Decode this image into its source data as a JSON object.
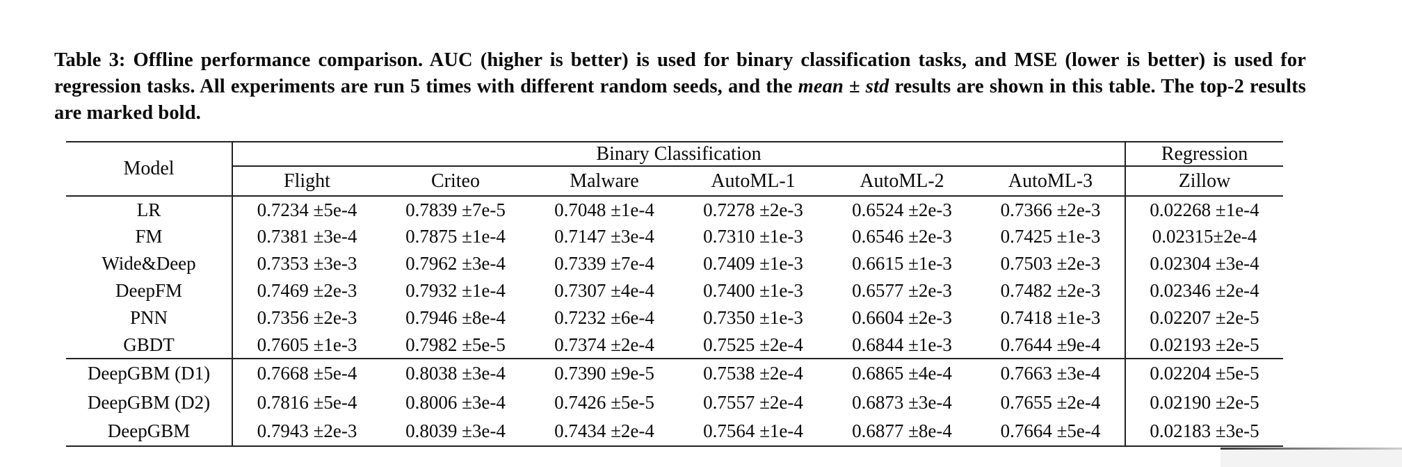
{
  "page": {
    "background": "#ffffff",
    "text_color": "#0a0a0a",
    "rule_color": "#222222"
  },
  "caption": {
    "text_before_italic": "Table 3: Offline performance comparison. AUC (higher is better) is used for binary classification tasks, and MSE (lower is better) is used for regression tasks. All experiments are run 5 times with different random seeds, and the ",
    "italic_text": "mean ± std",
    "text_after_italic": " results are shown in this table. The top-2 results are marked bold."
  },
  "table": {
    "corner_header": "Model",
    "group_headers": [
      {
        "label": "Binary Classification",
        "colspan": 6
      },
      {
        "label": "Regression",
        "colspan": 1
      }
    ],
    "column_headers": [
      "Flight",
      "Criteo",
      "Malware",
      "AutoML-1",
      "AutoML-2",
      "AutoML-3",
      "Zillow"
    ],
    "rows": [
      {
        "model": "LR",
        "section": "baseline",
        "cells": [
          {
            "text": "0.7234 ±5e-4",
            "bold": false
          },
          {
            "text": "0.7839 ±7e-5",
            "bold": false
          },
          {
            "text": "0.7048 ±1e-4",
            "bold": false
          },
          {
            "text": "0.7278 ±2e-3",
            "bold": false
          },
          {
            "text": "0.6524 ±2e-3",
            "bold": false
          },
          {
            "text": "0.7366 ±2e-3",
            "bold": false
          },
          {
            "text": "0.02268 ±1e-4",
            "bold": false
          }
        ]
      },
      {
        "model": "FM",
        "section": "baseline",
        "cells": [
          {
            "text": "0.7381 ±3e-4",
            "bold": false
          },
          {
            "text": "0.7875 ±1e-4",
            "bold": false
          },
          {
            "text": "0.7147 ±3e-4",
            "bold": false
          },
          {
            "text": "0.7310 ±1e-3",
            "bold": false
          },
          {
            "text": "0.6546 ±2e-3",
            "bold": false
          },
          {
            "text": "0.7425 ±1e-3",
            "bold": false
          },
          {
            "text": "0.02315±2e-4",
            "bold": false
          }
        ]
      },
      {
        "model": "Wide&Deep",
        "section": "baseline",
        "cells": [
          {
            "text": "0.7353 ±3e-3",
            "bold": false
          },
          {
            "text": "0.7962 ±3e-4",
            "bold": false
          },
          {
            "text": "0.7339 ±7e-4",
            "bold": false
          },
          {
            "text": "0.7409 ±1e-3",
            "bold": false
          },
          {
            "text": "0.6615 ±1e-3",
            "bold": false
          },
          {
            "text": "0.7503 ±2e-3",
            "bold": false
          },
          {
            "text": "0.02304 ±3e-4",
            "bold": false
          }
        ]
      },
      {
        "model": "DeepFM",
        "section": "baseline",
        "cells": [
          {
            "text": "0.7469 ±2e-3",
            "bold": false
          },
          {
            "text": "0.7932 ±1e-4",
            "bold": false
          },
          {
            "text": "0.7307 ±4e-4",
            "bold": false
          },
          {
            "text": "0.7400 ±1e-3",
            "bold": false
          },
          {
            "text": "0.6577 ±2e-3",
            "bold": false
          },
          {
            "text": "0.7482 ±2e-3",
            "bold": false
          },
          {
            "text": "0.02346 ±2e-4",
            "bold": false
          }
        ]
      },
      {
        "model": "PNN",
        "section": "baseline",
        "cells": [
          {
            "text": "0.7356 ±2e-3",
            "bold": false
          },
          {
            "text": "0.7946 ±8e-4",
            "bold": false
          },
          {
            "text": "0.7232 ±6e-4",
            "bold": false
          },
          {
            "text": "0.7350 ±1e-3",
            "bold": false
          },
          {
            "text": "0.6604 ±2e-3",
            "bold": false
          },
          {
            "text": "0.7418 ±1e-3",
            "bold": false
          },
          {
            "text": "0.02207 ±2e-5",
            "bold": false
          }
        ]
      },
      {
        "model": "GBDT",
        "section": "baseline",
        "last_of_section": true,
        "cells": [
          {
            "text": "0.7605 ±1e-3",
            "bold": false
          },
          {
            "text": "0.7982 ±5e-5",
            "bold": false
          },
          {
            "text": "0.7374 ±2e-4",
            "bold": false
          },
          {
            "text": "0.7525 ±2e-4",
            "bold": false
          },
          {
            "text": "0.6844 ±1e-3",
            "bold": false
          },
          {
            "text": "0.7644 ±9e-4",
            "bold": false
          },
          {
            "text": "0.02193 ±2e-5",
            "bold": false
          }
        ]
      },
      {
        "model": "DeepGBM (D1)",
        "section": "deepgbm",
        "cells": [
          {
            "text": "0.7668 ±5e-4",
            "bold": false
          },
          {
            "text": "0.8038 ±3e-4",
            "bold": true
          },
          {
            "text": "0.7390 ±9e-5",
            "bold": false
          },
          {
            "text": "0.7538 ±2e-4",
            "bold": false
          },
          {
            "text": "0.6865 ±4e-4",
            "bold": false
          },
          {
            "text": "0.7663 ±3e-4",
            "bold": true
          },
          {
            "text": "0.02204 ±5e-5",
            "bold": false
          }
        ]
      },
      {
        "model": "DeepGBM (D2)",
        "section": "deepgbm",
        "cells": [
          {
            "text": "0.7816 ±5e-4",
            "bold": true
          },
          {
            "text": "0.8006 ±3e-4",
            "bold": false
          },
          {
            "text": "0.7426 ±5e-5",
            "bold": true
          },
          {
            "text": "0.7557 ±2e-4",
            "bold": true
          },
          {
            "text": "0.6873 ±3e-4",
            "bold": true
          },
          {
            "text": "0.7655 ±2e-4",
            "bold": false
          },
          {
            "text": "0.02190 ±2e-5",
            "bold": true
          }
        ]
      },
      {
        "model": "DeepGBM",
        "section": "deepgbm",
        "cells": [
          {
            "text": "0.7943 ±2e-3",
            "bold": true
          },
          {
            "text": "0.8039 ±3e-4",
            "bold": true
          },
          {
            "text": "0.7434 ±2e-4",
            "bold": true
          },
          {
            "text": "0.7564 ±1e-4",
            "bold": true
          },
          {
            "text": "0.6877 ±8e-4",
            "bold": true
          },
          {
            "text": "0.7664 ±5e-4",
            "bold": true
          },
          {
            "text": "0.02183 ±3e-5",
            "bold": true
          }
        ]
      }
    ]
  }
}
